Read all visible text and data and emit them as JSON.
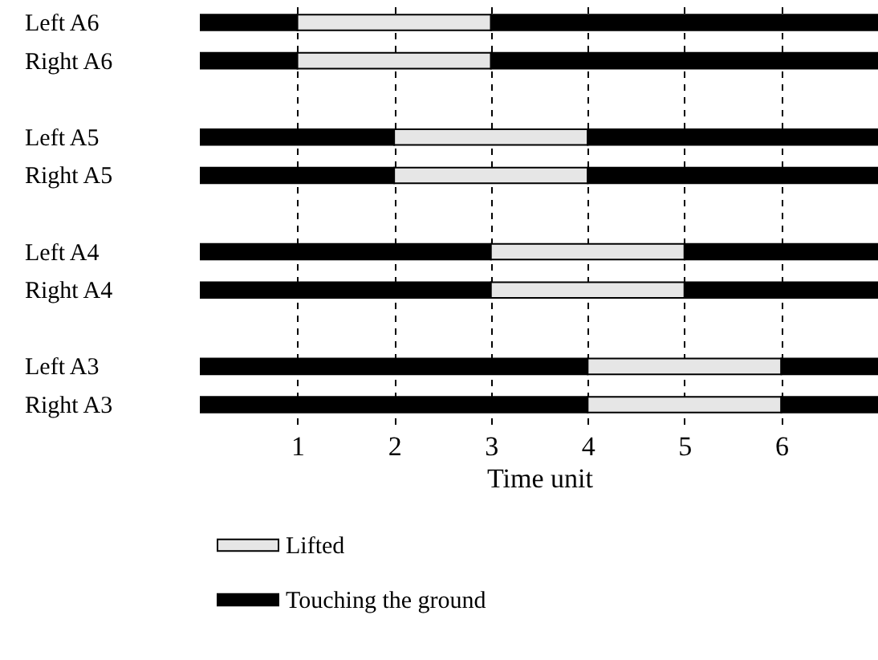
{
  "chart_data": {
    "type": "bar",
    "orientation": "horizontal",
    "stacked": true,
    "xlabel": "Time unit",
    "categories": [
      "Left A6",
      "Right A6",
      null,
      "Left A5",
      "Right A5",
      null,
      "Left A4",
      "Right A4",
      null,
      "Left A3",
      "Right A3"
    ],
    "series": [
      {
        "name": "Touching the ground",
        "color": "#000000",
        "values": [
          1,
          1,
          null,
          2,
          2,
          null,
          3,
          3,
          null,
          4,
          4
        ]
      },
      {
        "name": "Lifted",
        "color": "#e6e6e6",
        "values": [
          2,
          2,
          null,
          2,
          2,
          null,
          2,
          2,
          null,
          2,
          2
        ]
      },
      {
        "color": "#000000",
        "values": [
          4,
          4,
          null,
          3,
          3,
          null,
          2,
          2,
          null,
          1,
          1
        ]
      }
    ],
    "xlim": [
      0,
      7
    ],
    "xticks": [
      1,
      2,
      3,
      4,
      5,
      6
    ],
    "grid": "x",
    "legend": "bottom"
  }
}
